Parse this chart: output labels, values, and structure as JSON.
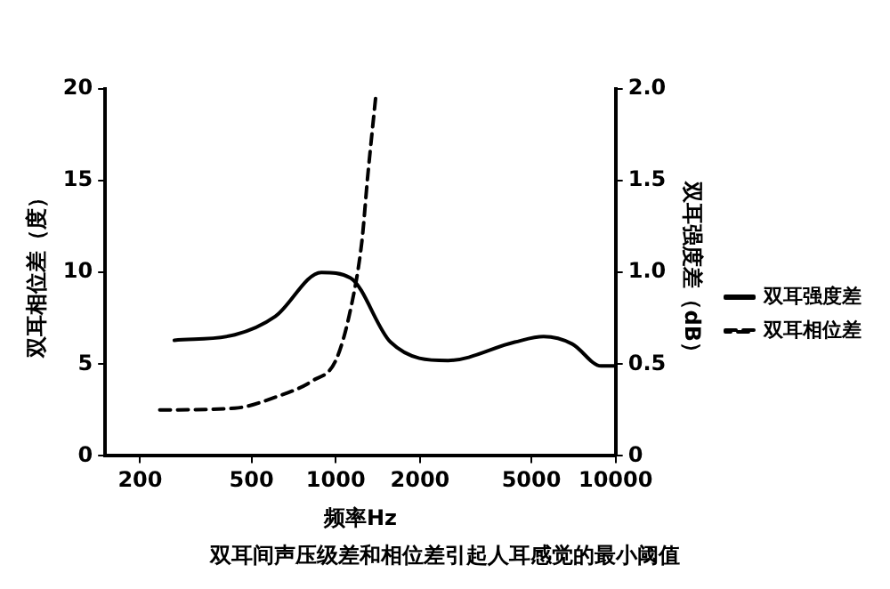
{
  "chart_data": {
    "type": "line",
    "xlabel": "频率Hz",
    "ylabel": "双耳相位差（度）",
    "y2label": "双耳强度差（dB）",
    "annotations": [
      "双耳间声压级差和相位差引起人耳感觉的最小阈值"
    ],
    "log": "x",
    "xlim": [
      150,
      10000
    ],
    "xticks": [
      200,
      500,
      1000,
      2000,
      5000,
      10000
    ],
    "ylim": [
      0,
      20
    ],
    "yticks": [
      0,
      5,
      10,
      15,
      20
    ],
    "y2lim": [
      0,
      2
    ],
    "y2ticks": [
      0,
      {
        "value": 0.5,
        "label": "0.5"
      },
      {
        "value": 1,
        "label": "1.0"
      },
      {
        "value": 1.5,
        "label": "1.5"
      },
      {
        "value": 2,
        "label": "2.0"
      }
    ],
    "grid": false,
    "legend": "right",
    "marker": "none",
    "series": [
      {
        "name": "双耳强度差",
        "color": "#000000",
        "axis": "y2",
        "line_style": "solid",
        "x": [
          265,
          436,
          608,
          888,
          1130,
          1570,
          2520,
          4360,
          5530,
          7000,
          8880,
          10000
        ],
        "values": [
          0.63,
          0.66,
          0.76,
          1.0,
          0.97,
          0.62,
          0.52,
          0.62,
          0.65,
          0.61,
          0.49,
          0.49
        ]
      },
      {
        "name": "双耳相位差",
        "color": "#000000",
        "axis": "y",
        "line_style": "dashed",
        "x": [
          235,
          436,
          608,
          827,
          1000,
          1130,
          1240,
          1300,
          1390
        ],
        "values": [
          2.5,
          2.6,
          3.2,
          4.1,
          5.2,
          8,
          11.7,
          15.2,
          19.6
        ]
      }
    ]
  }
}
